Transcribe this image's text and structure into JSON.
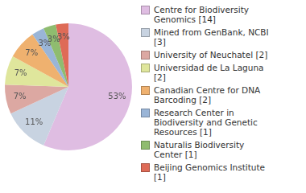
{
  "chart_data": {
    "type": "pie",
    "categories": [
      "Centre for Biodiversity Genomics [14]",
      "Mined from GenBank, NCBI [3]",
      "University of Neuchatel [2]",
      "Universidad de La Laguna [2]",
      "Canadian Centre for DNA Barcoding [2]",
      "Research Center in Biodiversity and Genetic Resources [1]",
      "Naturalis Biodiversity Center [1]",
      "Beijing Genomics Institute [1]"
    ],
    "values": [
      53,
      11,
      7,
      7,
      7,
      3,
      3,
      3
    ],
    "value_labels": [
      "53%",
      "11%",
      "7%",
      "7%",
      "7%",
      "3%",
      "3%",
      "3%"
    ],
    "colors": [
      "#dfbde2",
      "#c8d3e1",
      "#dca8a2",
      "#dfe69c",
      "#efb16f",
      "#9ab5d7",
      "#8fbc6f",
      "#de6b57"
    ],
    "data_labels": true,
    "legend": "right"
  }
}
